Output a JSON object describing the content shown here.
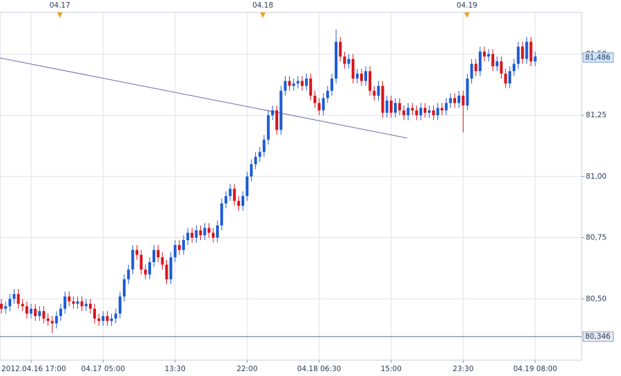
{
  "chart_data": {
    "type": "candlestick",
    "up_color": "#1c5bd6",
    "down_color": "#d8141c",
    "ylim": [
      80.25,
      81.67
    ],
    "xlim": [
      -0.33,
      136.97
    ],
    "grid": true,
    "yticks": [
      {
        "value": 80.5,
        "label": "80,50"
      },
      {
        "value": 80.75,
        "label": "80,75"
      },
      {
        "value": 81,
        "label": "81,00"
      },
      {
        "value": 81.25,
        "label": "81,25"
      },
      {
        "value": 81.5,
        "label": "81,50"
      }
    ],
    "xticks": [
      {
        "value": 7,
        "label": "2012.04.16 17:00"
      },
      {
        "value": 24,
        "label": "04.17 05:00"
      },
      {
        "value": 41,
        "label": "13:30"
      },
      {
        "value": 58,
        "label": "22:00"
      },
      {
        "value": 75,
        "label": "04.18 06:30"
      },
      {
        "value": 92,
        "label": "15:00"
      },
      {
        "value": 109,
        "label": "23:30"
      },
      {
        "value": 126,
        "label": "04.19 08:00"
      }
    ],
    "date_markers": [
      {
        "value": 13.8,
        "label": "04.17"
      },
      {
        "value": 61.7,
        "label": "04.18"
      },
      {
        "value": 109.9,
        "label": "04.19"
      }
    ],
    "hline": {
      "value": 80.346,
      "label": "80,346",
      "color": "#5a6a8a"
    },
    "price_marker": {
      "value": 81.486,
      "label": "81,486"
    },
    "trendline": {
      "x": [
        -0.33,
        95.8
      ],
      "y": [
        81.484,
        81.157
      ],
      "color": "#6a6aa8"
    },
    "open": [
      80.48,
      80.46,
      80.47,
      80.5,
      80.52,
      80.48,
      80.47,
      80.44,
      80.46,
      80.43,
      80.45,
      80.42,
      80.41,
      80.4,
      80.43,
      80.46,
      80.51,
      80.49,
      80.48,
      80.49,
      80.47,
      80.48,
      80.46,
      80.42,
      80.41,
      80.43,
      80.41,
      80.42,
      80.44,
      80.51,
      80.58,
      80.62,
      80.7,
      80.68,
      80.62,
      80.6,
      80.65,
      80.7,
      80.67,
      80.64,
      80.58,
      80.67,
      80.72,
      80.7,
      80.74,
      80.77,
      80.75,
      80.78,
      80.76,
      80.79,
      80.77,
      80.75,
      80.8,
      80.89,
      80.92,
      80.95,
      80.9,
      80.88,
      80.92,
      81.0,
      81.05,
      81.08,
      81.1,
      81.15,
      81.25,
      81.27,
      81.19,
      81.35,
      81.39,
      81.37,
      81.38,
      81.39,
      81.37,
      81.4,
      81.33,
      81.3,
      81.27,
      81.32,
      81.35,
      81.4,
      81.55,
      81.49,
      81.46,
      81.48,
      81.4,
      81.42,
      81.39,
      81.43,
      81.35,
      81.33,
      81.37,
      81.26,
      81.31,
      81.26,
      81.3,
      81.27,
      81.25,
      81.28,
      81.27,
      81.25,
      81.28,
      81.26,
      81.27,
      81.25,
      81.28,
      81.27,
      81.3,
      81.32,
      81.3,
      81.33,
      81.29,
      81.4,
      81.46,
      81.43,
      81.51,
      81.49,
      81.5,
      81.45,
      81.47,
      81.42,
      81.38,
      81.43,
      81.46,
      81.53,
      81.48,
      81.55,
      81.47
    ],
    "high": [
      80.5,
      80.49,
      80.52,
      80.54,
      80.54,
      80.5,
      80.49,
      80.48,
      80.48,
      80.47,
      80.47,
      80.44,
      80.43,
      80.45,
      80.48,
      80.53,
      80.53,
      80.51,
      80.51,
      80.51,
      80.5,
      80.5,
      80.48,
      80.44,
      80.45,
      80.45,
      80.44,
      80.46,
      80.53,
      80.6,
      80.64,
      80.72,
      80.72,
      80.7,
      80.64,
      80.67,
      80.72,
      80.72,
      80.69,
      80.66,
      80.69,
      80.74,
      80.74,
      80.76,
      80.79,
      80.79,
      80.8,
      80.8,
      80.81,
      80.81,
      80.79,
      80.82,
      80.91,
      80.94,
      80.97,
      80.97,
      80.92,
      80.94,
      81.02,
      81.07,
      81.1,
      81.12,
      81.17,
      81.27,
      81.29,
      81.29,
      81.37,
      81.41,
      81.41,
      81.4,
      81.41,
      81.41,
      81.42,
      81.42,
      81.35,
      81.32,
      81.34,
      81.37,
      81.42,
      81.6,
      81.57,
      81.51,
      81.5,
      81.5,
      81.44,
      81.44,
      81.45,
      81.45,
      81.37,
      81.39,
      81.39,
      81.33,
      81.33,
      81.32,
      81.32,
      81.29,
      81.3,
      81.3,
      81.29,
      81.3,
      81.3,
      81.29,
      81.29,
      81.3,
      81.3,
      81.32,
      81.34,
      81.34,
      81.35,
      81.35,
      81.42,
      81.48,
      81.48,
      81.53,
      81.53,
      81.52,
      81.52,
      81.49,
      81.49,
      81.44,
      81.45,
      81.48,
      81.55,
      81.55,
      81.57,
      81.57,
      81.51
    ],
    "low": [
      80.44,
      80.44,
      80.45,
      80.48,
      80.46,
      80.45,
      80.42,
      80.42,
      80.41,
      80.41,
      80.4,
      80.39,
      80.36,
      80.38,
      80.41,
      80.44,
      80.47,
      80.46,
      80.46,
      80.45,
      80.45,
      80.44,
      80.4,
      80.39,
      80.39,
      80.39,
      80.39,
      80.4,
      80.42,
      80.49,
      80.56,
      80.6,
      80.66,
      80.6,
      80.58,
      80.58,
      80.63,
      80.65,
      80.62,
      80.56,
      80.56,
      80.65,
      80.68,
      80.68,
      80.72,
      80.73,
      80.73,
      80.74,
      80.74,
      80.75,
      80.73,
      80.73,
      80.78,
      80.87,
      80.9,
      80.88,
      80.86,
      80.86,
      80.9,
      80.98,
      81.03,
      81.06,
      81.08,
      81.13,
      81.23,
      81.17,
      81.17,
      81.33,
      81.35,
      81.35,
      81.36,
      81.35,
      81.35,
      81.31,
      81.28,
      81.25,
      81.25,
      81.3,
      81.33,
      81.38,
      81.47,
      81.44,
      81.44,
      81.38,
      81.38,
      81.37,
      81.37,
      81.33,
      81.31,
      81.31,
      81.24,
      81.24,
      81.24,
      81.24,
      81.25,
      81.23,
      81.23,
      81.25,
      81.23,
      81.23,
      81.24,
      81.24,
      81.23,
      81.23,
      81.25,
      81.25,
      81.28,
      81.28,
      81.28,
      81.18,
      81.27,
      81.38,
      81.41,
      81.41,
      81.47,
      81.47,
      81.43,
      81.43,
      81.4,
      81.36,
      81.36,
      81.41,
      81.44,
      81.46,
      81.46,
      81.45,
      81.45
    ],
    "close": [
      80.46,
      80.47,
      80.5,
      80.52,
      80.48,
      80.47,
      80.44,
      80.46,
      80.43,
      80.45,
      80.42,
      80.41,
      80.4,
      80.43,
      80.46,
      80.51,
      80.49,
      80.48,
      80.49,
      80.47,
      80.48,
      80.46,
      80.42,
      80.41,
      80.43,
      80.41,
      80.42,
      80.44,
      80.51,
      80.58,
      80.62,
      80.7,
      80.68,
      80.62,
      80.6,
      80.65,
      80.7,
      80.67,
      80.64,
      80.58,
      80.67,
      80.72,
      80.7,
      80.74,
      80.77,
      80.75,
      80.78,
      80.76,
      80.79,
      80.77,
      80.75,
      80.8,
      80.89,
      80.92,
      80.95,
      80.9,
      80.88,
      80.92,
      81.0,
      81.05,
      81.08,
      81.1,
      81.15,
      81.25,
      81.27,
      81.19,
      81.35,
      81.39,
      81.37,
      81.38,
      81.39,
      81.37,
      81.4,
      81.33,
      81.3,
      81.27,
      81.32,
      81.35,
      81.4,
      81.55,
      81.49,
      81.46,
      81.48,
      81.4,
      81.42,
      81.39,
      81.43,
      81.35,
      81.33,
      81.37,
      81.26,
      81.31,
      81.26,
      81.3,
      81.27,
      81.25,
      81.28,
      81.27,
      81.25,
      81.28,
      81.26,
      81.27,
      81.25,
      81.28,
      81.27,
      81.3,
      81.32,
      81.3,
      81.33,
      81.29,
      81.4,
      81.46,
      81.43,
      81.51,
      81.49,
      81.5,
      81.45,
      81.47,
      81.42,
      81.38,
      81.43,
      81.46,
      81.53,
      81.48,
      81.55,
      81.47,
      81.49
    ]
  }
}
